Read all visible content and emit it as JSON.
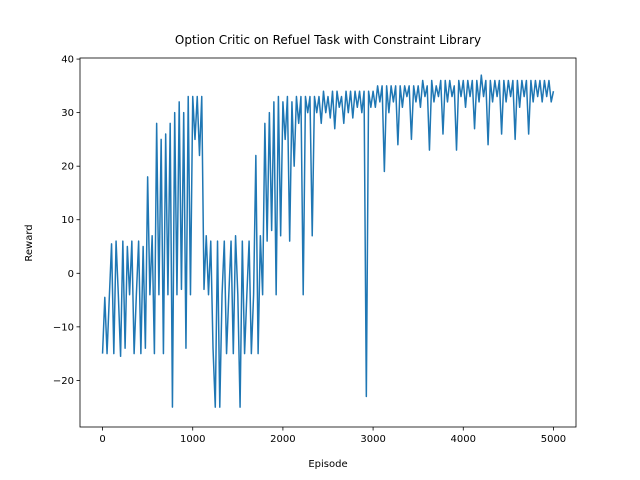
{
  "chart_data": {
    "type": "line",
    "title": "Option Critic on Refuel Task with Constraint Library",
    "x_label": "Episode",
    "y_label": "Reward",
    "xlim": [
      -250,
      5250
    ],
    "ylim": [
      -28.7,
      40.2
    ],
    "xticks": [
      0,
      1000,
      2000,
      3000,
      4000,
      5000
    ],
    "yticks": [
      {
        "value": -20,
        "label": "−20"
      },
      {
        "value": -10,
        "label": "−10"
      },
      0,
      10,
      20,
      30,
      40
    ],
    "grid": false,
    "x": [
      0,
      25,
      50,
      75,
      100,
      125,
      150,
      175,
      200,
      225,
      250,
      275,
      300,
      325,
      350,
      375,
      400,
      425,
      450,
      475,
      500,
      525,
      550,
      575,
      600,
      625,
      650,
      675,
      700,
      725,
      750,
      775,
      800,
      825,
      850,
      875,
      900,
      925,
      950,
      975,
      1000,
      1025,
      1050,
      1075,
      1100,
      1125,
      1150,
      1175,
      1200,
      1225,
      1250,
      1275,
      1300,
      1325,
      1350,
      1375,
      1400,
      1425,
      1450,
      1475,
      1500,
      1525,
      1550,
      1575,
      1600,
      1625,
      1650,
      1675,
      1700,
      1725,
      1750,
      1775,
      1800,
      1825,
      1850,
      1875,
      1900,
      1925,
      1950,
      1975,
      2000,
      2025,
      2050,
      2075,
      2100,
      2125,
      2150,
      2175,
      2200,
      2225,
      2250,
      2275,
      2300,
      2325,
      2350,
      2375,
      2400,
      2425,
      2450,
      2475,
      2500,
      2525,
      2550,
      2575,
      2600,
      2625,
      2650,
      2675,
      2700,
      2725,
      2750,
      2775,
      2800,
      2825,
      2850,
      2875,
      2900,
      2925,
      2950,
      2975,
      3000,
      3025,
      3050,
      3075,
      3100,
      3125,
      3150,
      3175,
      3200,
      3225,
      3250,
      3275,
      3300,
      3325,
      3350,
      3375,
      3400,
      3425,
      3450,
      3475,
      3500,
      3525,
      3550,
      3575,
      3600,
      3625,
      3650,
      3675,
      3700,
      3725,
      3750,
      3775,
      3800,
      3825,
      3850,
      3875,
      3900,
      3925,
      3950,
      3975,
      4000,
      4025,
      4050,
      4075,
      4100,
      4125,
      4150,
      4175,
      4200,
      4225,
      4250,
      4275,
      4300,
      4325,
      4350,
      4375,
      4400,
      4425,
      4450,
      4475,
      4500,
      4525,
      4550,
      4575,
      4600,
      4625,
      4650,
      4675,
      4700,
      4725,
      4750,
      4775,
      4800,
      4825,
      4850,
      4875,
      4900,
      4925,
      4950,
      4975,
      5000
    ],
    "series": [
      {
        "color": "#1f77b4",
        "values": [
          -15,
          -4.5,
          -15,
          -4.5,
          5.5,
          -15,
          6,
          -4,
          -15.5,
          6,
          -14,
          5,
          -4,
          6,
          -15,
          -4,
          6,
          -15,
          5,
          -14,
          18,
          -4,
          7,
          -15,
          28,
          -4,
          25,
          -15,
          26,
          -4,
          28,
          -25,
          30,
          -4,
          32,
          -3,
          30,
          -14,
          33,
          -4,
          33,
          25,
          33,
          22,
          33,
          -3,
          7,
          -4,
          6,
          -14,
          -25,
          6,
          -25,
          -4,
          6,
          -15,
          -4,
          6,
          -15,
          7,
          -4,
          -25,
          6,
          -15,
          -4,
          6,
          -15,
          -4,
          22,
          -15,
          7,
          -4,
          28,
          6,
          30,
          8,
          32,
          -4,
          33,
          7,
          32,
          25,
          33,
          6,
          32,
          20,
          33,
          28,
          33,
          -4,
          33,
          30,
          33,
          7,
          33,
          30,
          33,
          28,
          34,
          30,
          33,
          29,
          34,
          27,
          34,
          31,
          33,
          28,
          34,
          30,
          34,
          29,
          34,
          31,
          34,
          30,
          34,
          -23,
          34,
          31,
          34,
          31,
          35,
          32,
          35,
          19,
          35,
          30,
          35,
          32,
          35,
          24,
          35,
          31,
          35,
          33,
          35,
          25,
          35,
          32,
          35,
          31,
          36,
          33,
          35,
          23,
          36,
          32,
          35,
          33,
          36,
          26,
          36,
          32,
          36,
          33,
          35,
          23,
          36,
          33,
          36,
          31,
          36,
          33,
          36,
          27,
          36,
          32,
          37,
          33,
          36,
          24,
          36,
          32,
          36,
          33,
          36,
          26,
          36,
          32,
          36,
          33,
          36,
          25,
          36,
          31,
          36,
          33,
          36,
          26,
          36,
          32,
          36,
          33,
          36,
          32,
          36,
          33,
          36,
          32,
          34
        ]
      }
    ]
  }
}
